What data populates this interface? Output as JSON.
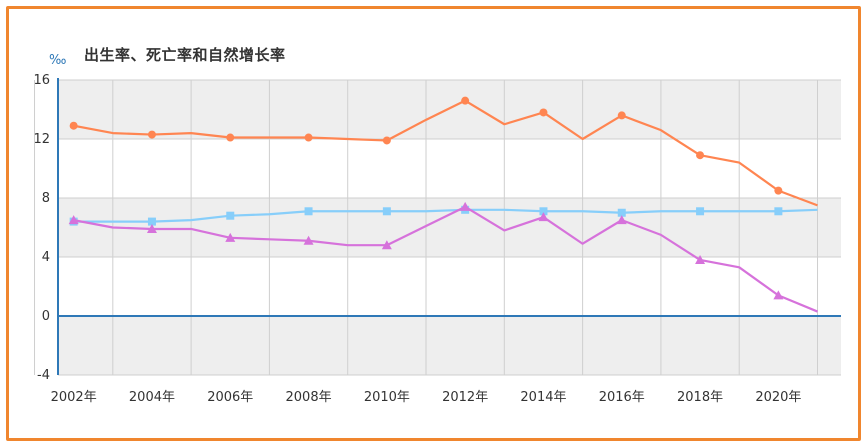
{
  "unit_label": "‰",
  "title": "出生率、死亡率和自然增长率",
  "colors": {
    "birth": "#ff8551",
    "death": "#87cefa",
    "natural": "#d672db",
    "axis": "#2e78b7",
    "band": "#eeeeee",
    "grid": "#cfcfcf",
    "frame": "#f0862e"
  },
  "chart_data": {
    "type": "line",
    "title": "出生率、死亡率和自然增长率",
    "ylabel": "‰",
    "xlabel": "",
    "ylim": [
      -4,
      16
    ],
    "yticks": [
      -4,
      0,
      4,
      8,
      12,
      16
    ],
    "x": [
      2002,
      2003,
      2004,
      2005,
      2006,
      2007,
      2008,
      2009,
      2010,
      2011,
      2012,
      2013,
      2014,
      2015,
      2016,
      2017,
      2018,
      2019,
      2020,
      2021
    ],
    "x_tick_labels": [
      "2002年",
      "2004年",
      "2006年",
      "2008年",
      "2010年",
      "2012年",
      "2014年",
      "2016年",
      "2018年",
      "2020年"
    ],
    "grid": true,
    "legend": "none",
    "series": [
      {
        "key": "birth",
        "marker": "circle",
        "values": [
          12.9,
          12.4,
          12.3,
          12.4,
          12.1,
          12.1,
          12.1,
          12.0,
          11.9,
          13.3,
          14.6,
          13.0,
          13.8,
          12.0,
          13.6,
          12.6,
          10.9,
          10.4,
          8.5,
          7.5
        ]
      },
      {
        "key": "death",
        "marker": "square",
        "values": [
          6.4,
          6.4,
          6.4,
          6.5,
          6.8,
          6.9,
          7.1,
          7.1,
          7.1,
          7.1,
          7.2,
          7.2,
          7.1,
          7.1,
          7.0,
          7.1,
          7.1,
          7.1,
          7.1,
          7.2
        ]
      },
      {
        "key": "natural",
        "marker": "triangle",
        "values": [
          6.5,
          6.0,
          5.9,
          5.9,
          5.3,
          5.2,
          5.1,
          4.8,
          4.8,
          6.1,
          7.4,
          5.8,
          6.7,
          4.9,
          6.5,
          5.5,
          3.8,
          3.3,
          1.4,
          0.3
        ]
      }
    ]
  }
}
